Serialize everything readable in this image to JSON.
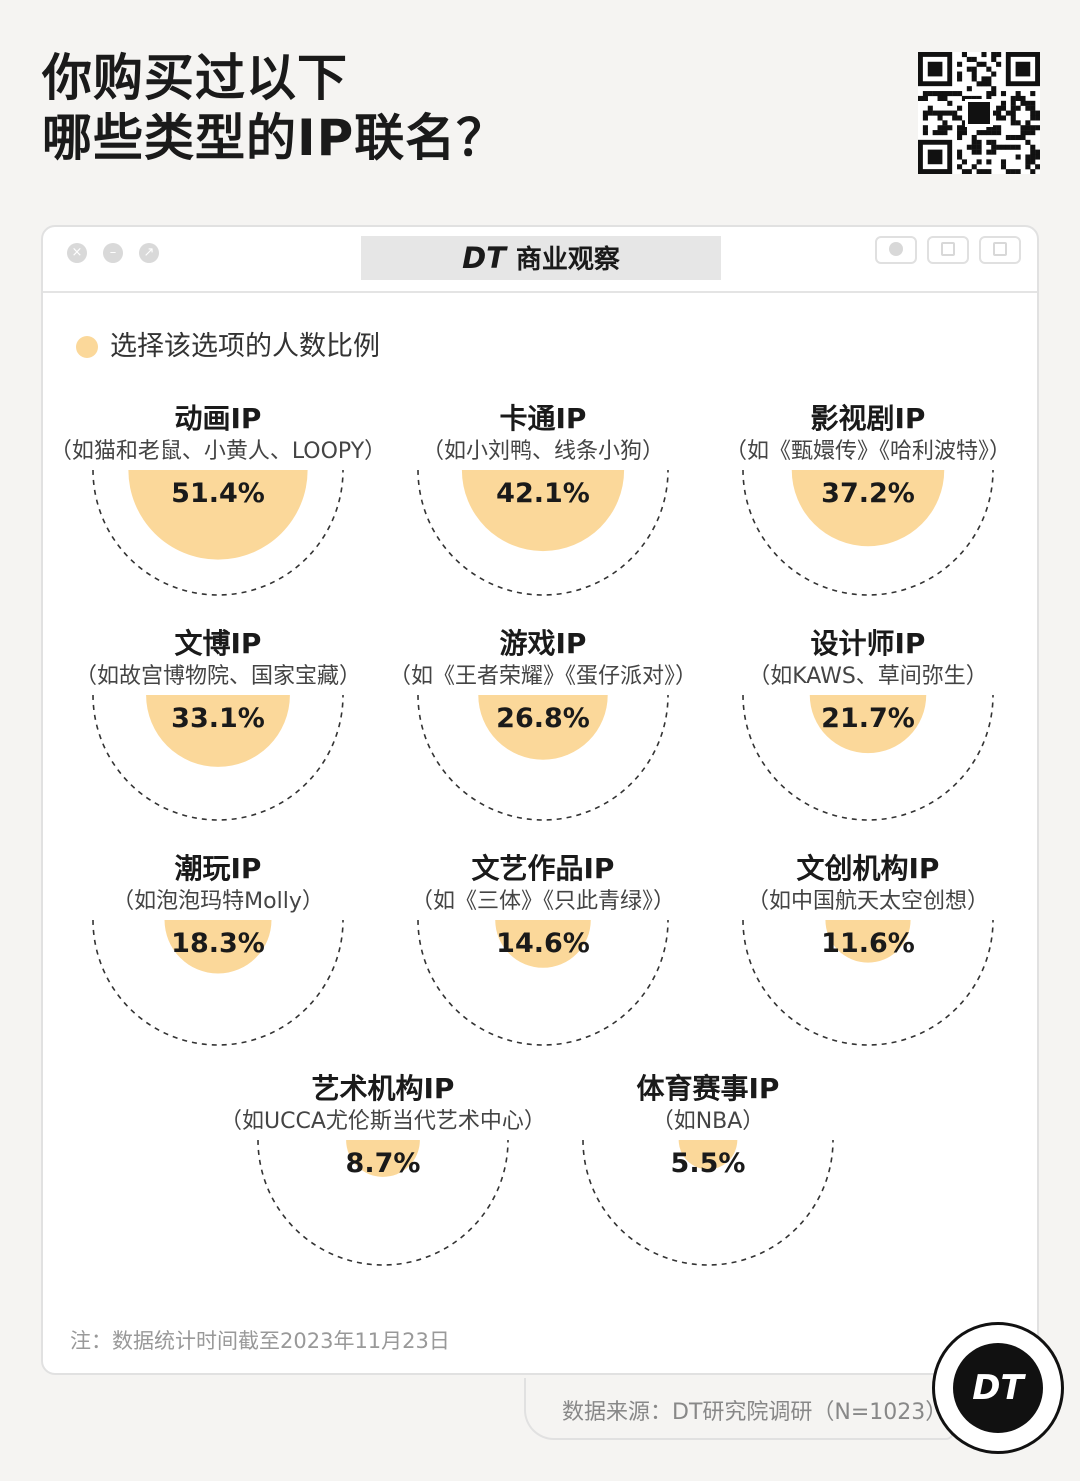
{
  "title": {
    "line1": "你购买过以下",
    "line2": "哪些类型的IP联名？"
  },
  "window": {
    "brand_logo": "DT",
    "brand_text": "商业观察"
  },
  "legend": {
    "label": "选择该选项的人数比例",
    "color": "#fbd89a"
  },
  "chart_data": {
    "type": "semicircle-proportional",
    "series": [
      {
        "name": "选择该选项的人数比例",
        "color": "#fbd89a",
        "points": [
          {
            "category": "动画IP",
            "examples": "（如猫和老鼠、小黄人、LOOPY）",
            "value": 51.4,
            "label": "51.4%"
          },
          {
            "category": "卡通IP",
            "examples": "（如小刘鸭、线条小狗）",
            "value": 42.1,
            "label": "42.1%"
          },
          {
            "category": "影视剧IP",
            "examples": "（如《甄嬛传》《哈利波特》）",
            "value": 37.2,
            "label": "37.2%"
          },
          {
            "category": "文博IP",
            "examples": "（如故宫博物院、国家宝藏）",
            "value": 33.1,
            "label": "33.1%"
          },
          {
            "category": "游戏IP",
            "examples": "（如《王者荣耀》《蛋仔派对》）",
            "value": 26.8,
            "label": "26.8%"
          },
          {
            "category": "设计师IP",
            "examples": "（如KAWS、草间弥生）",
            "value": 21.7,
            "label": "21.7%"
          },
          {
            "category": "潮玩IP",
            "examples": "（如泡泡玛特Molly）",
            "value": 18.3,
            "label": "18.3%"
          },
          {
            "category": "文艺作品IP",
            "examples": "（如《三体》《只此青绿》）",
            "value": 14.6,
            "label": "14.6%"
          },
          {
            "category": "文创机构IP",
            "examples": "（如中国航天太空创想）",
            "value": 11.6,
            "label": "11.6%"
          },
          {
            "category": "艺术机构IP",
            "examples": "（如UCCA尤伦斯当代艺术中心）",
            "value": 8.7,
            "label": "8.7%"
          },
          {
            "category": "体育赛事IP",
            "examples": "（如NBA）",
            "value": 5.5,
            "label": "5.5%"
          }
        ]
      }
    ],
    "reference_max": 100
  },
  "note": "注：数据统计时间截至2023年11月23日",
  "source": "数据来源：DT研究院调研（N=1023）",
  "badge": "DT"
}
